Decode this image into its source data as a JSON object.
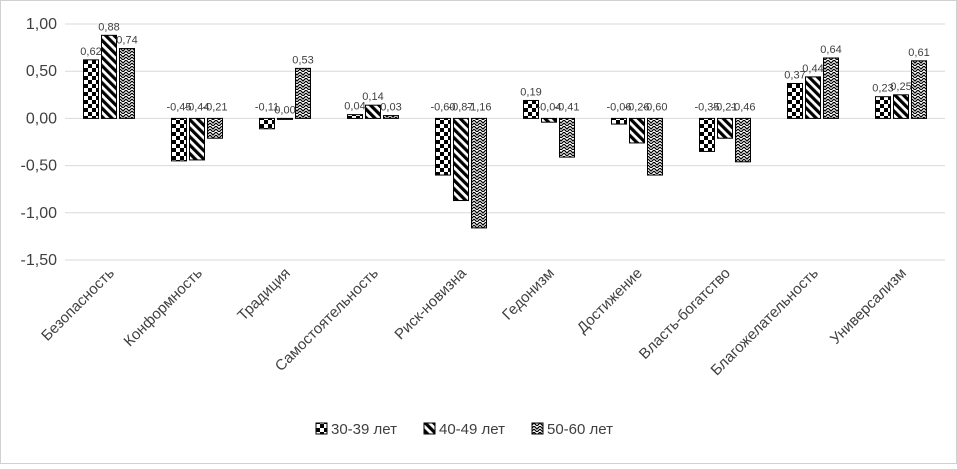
{
  "chart_data": {
    "type": "bar",
    "title": "",
    "xlabel": "",
    "ylabel": "",
    "ylim": [
      -1.5,
      1.0
    ],
    "y_ticks": [
      "1,00",
      "0,50",
      "0,00",
      "-0,50",
      "-1,00",
      "-1,50"
    ],
    "y_tick_values": [
      1.0,
      0.5,
      0.0,
      -0.5,
      -1.0,
      -1.5
    ],
    "grid": true,
    "legend_position": "bottom",
    "categories": [
      "Безопасность",
      "Конформность",
      "Традиция",
      "Самостоятельность",
      "Риск-новизна",
      "Гедонизм",
      "Достижение",
      "Власть-богатство",
      "Благожелательность",
      "Универсализм"
    ],
    "series": [
      {
        "name": "30-39 лет",
        "pattern": "checker",
        "values": [
          0.62,
          -0.45,
          -0.11,
          0.04,
          -0.6,
          0.19,
          -0.06,
          -0.35,
          0.37,
          0.23
        ],
        "labels": [
          "0,62",
          "-0,45",
          "-0,11",
          "0,04",
          "-0,60",
          "0,19",
          "-0,06",
          "-0,35",
          "0,37",
          "0,23"
        ]
      },
      {
        "name": "40-49 лет",
        "pattern": "diagonal",
        "values": [
          0.88,
          -0.44,
          0.0,
          0.14,
          -0.87,
          -0.04,
          -0.26,
          -0.21,
          0.44,
          0.25
        ],
        "labels": [
          "0,88",
          "-0,44",
          "0,00",
          "0,14",
          "-0,87",
          "-0,04",
          "-0,26",
          "-0,21",
          "0,44",
          "0,25"
        ]
      },
      {
        "name": "50-60 лет",
        "pattern": "zigzag",
        "values": [
          0.74,
          -0.21,
          0.53,
          0.03,
          -1.16,
          -0.41,
          -0.6,
          -0.46,
          0.64,
          0.61
        ],
        "labels": [
          "0,74",
          "-0,21",
          "0,53",
          "0,03",
          "-1,16",
          "-0,41",
          "-0,60",
          "-0,46",
          "0,64",
          "0,61"
        ]
      }
    ],
    "colors": {
      "ink": "#000000",
      "grid": "#d9d9d9",
      "text": "#404040"
    }
  }
}
